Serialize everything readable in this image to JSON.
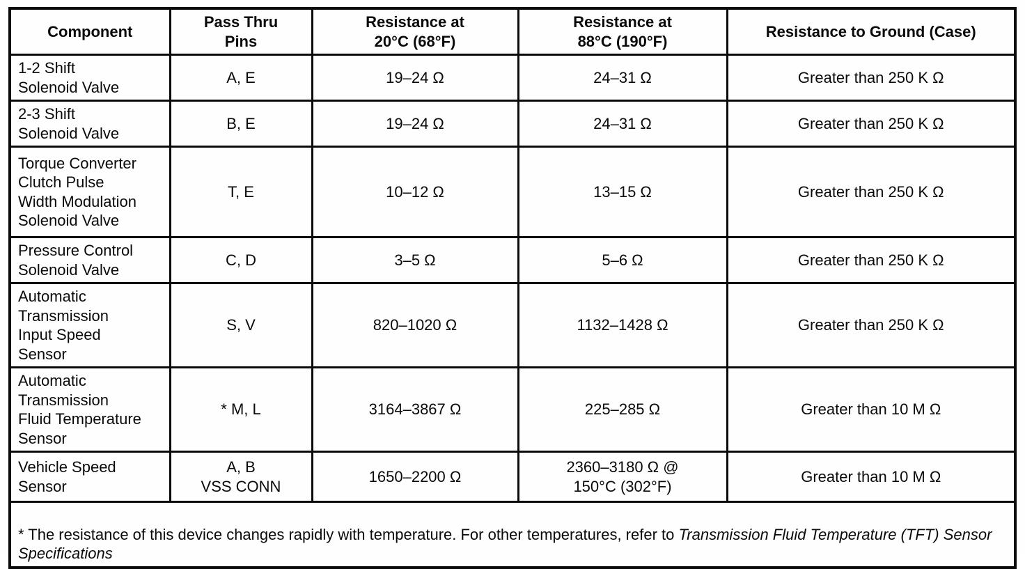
{
  "colors": {
    "background": "#fefefe",
    "border": "#0a0a0a",
    "text": "#0a0a0a"
  },
  "table": {
    "headers": {
      "component": "Component",
      "pins": "Pass Thru\nPins",
      "r20": "Resistance at\n20°C (68°F)",
      "r88": "Resistance at\n88°C (190°F)",
      "ground": "Resistance to Ground (Case)"
    },
    "rows": [
      {
        "component": "1-2 Shift\nSolenoid Valve",
        "pins": "A, E",
        "r20": "19–24 Ω",
        "r88": "24–31 Ω",
        "ground": "Greater than 250 K Ω"
      },
      {
        "component": "2-3 Shift\nSolenoid Valve",
        "pins": "B, E",
        "r20": "19–24 Ω",
        "r88": "24–31 Ω",
        "ground": "Greater than 250 K Ω"
      },
      {
        "component": "Torque Converter\nClutch Pulse\nWidth Modulation\nSolenoid Valve",
        "pins": "T, E",
        "r20": "10–12 Ω",
        "r88": "13–15 Ω",
        "ground": "Greater than 250 K Ω"
      },
      {
        "component": "Pressure Control\nSolenoid Valve",
        "pins": "C, D",
        "r20": "3–5 Ω",
        "r88": "5–6 Ω",
        "ground": "Greater than 250 K Ω"
      },
      {
        "component": "Automatic\nTransmission\nInput Speed\nSensor",
        "pins": "S, V",
        "r20": "820–1020 Ω",
        "r88": "1132–1428 Ω",
        "ground": "Greater than 250 K Ω"
      },
      {
        "component": "Automatic\nTransmission\nFluid Temperature\nSensor",
        "pins": "* M, L",
        "r20": "3164–3867 Ω",
        "r88": "225–285 Ω",
        "ground": "Greater than 10 M Ω"
      },
      {
        "component": "Vehicle Speed\nSensor",
        "pins": "A, B\nVSS CONN",
        "r20": "1650–2200 Ω",
        "r88": "2360–3180 Ω @\n150°C (302°F)",
        "ground": "Greater than 10 M Ω"
      }
    ],
    "footnote": {
      "regular": "* The resistance of this device changes rapidly with temperature. For other temperatures, refer to ",
      "italic": "Transmission Fluid Temperature (TFT) Sensor Specifications"
    }
  }
}
